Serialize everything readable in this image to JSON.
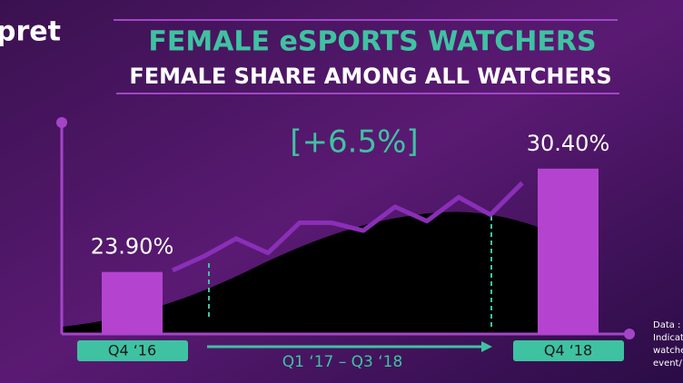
{
  "brand": "pret",
  "chart_data": {
    "type": "bar",
    "title": "FEMALE eSPORTS WATCHERS",
    "subtitle": "FEMALE SHARE AMONG ALL WATCHERS",
    "annotation": "[+6.5%]",
    "categories": [
      "Q4 ‘16",
      "Q4 ‘18"
    ],
    "values": [
      23.9,
      30.4
    ],
    "value_labels": [
      "23.90%",
      "30.40%"
    ],
    "color": "#b444cf",
    "ylim": [
      20,
      33.3
    ],
    "trend": {
      "label": "Q1  ‘17 – Q3 ‘18",
      "color": "#8a2fb8",
      "values": [
        24.0,
        24.9,
        26.0,
        25.1,
        27.0,
        27.0,
        26.5,
        28.0,
        27.1,
        28.6,
        27.5,
        29.5
      ]
    }
  },
  "footnote": [
    "Data :",
    "Indicat",
    "watche",
    "event/"
  ]
}
